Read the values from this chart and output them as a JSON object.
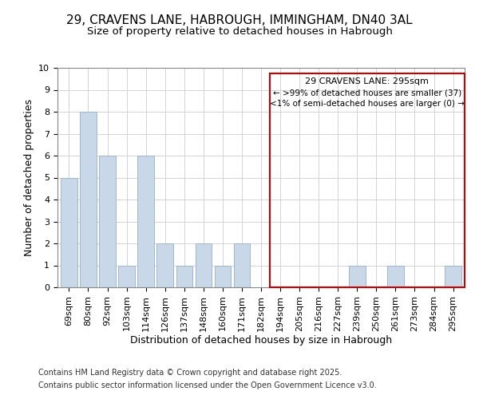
{
  "title": "29, CRAVENS LANE, HABROUGH, IMMINGHAM, DN40 3AL",
  "subtitle": "Size of property relative to detached houses in Habrough",
  "xlabel": "Distribution of detached houses by size in Habrough",
  "ylabel": "Number of detached properties",
  "categories": [
    "69sqm",
    "80sqm",
    "92sqm",
    "103sqm",
    "114sqm",
    "126sqm",
    "137sqm",
    "148sqm",
    "160sqm",
    "171sqm",
    "182sqm",
    "194sqm",
    "205sqm",
    "216sqm",
    "227sqm",
    "239sqm",
    "250sqm",
    "261sqm",
    "273sqm",
    "284sqm",
    "295sqm"
  ],
  "values": [
    5,
    8,
    6,
    1,
    6,
    2,
    1,
    2,
    1,
    2,
    0,
    0,
    0,
    0,
    0,
    1,
    0,
    1,
    0,
    0,
    1
  ],
  "bar_color": "#c8d8e8",
  "bar_edge_color": "#a0b8cc",
  "box_outline_color": "#cc0000",
  "annotation_title": "29 CRAVENS LANE: 295sqm",
  "annotation_line1": "← >99% of detached houses are smaller (37)",
  "annotation_line2": "<1% of semi-detached houses are larger (0) →",
  "ylim": [
    0,
    10
  ],
  "yticks": [
    0,
    1,
    2,
    3,
    4,
    5,
    6,
    7,
    8,
    9,
    10
  ],
  "footnote1": "Contains HM Land Registry data © Crown copyright and database right 2025.",
  "footnote2": "Contains public sector information licensed under the Open Government Licence v3.0.",
  "background_color": "#ffffff",
  "grid_color": "#cccccc",
  "title_fontsize": 11,
  "subtitle_fontsize": 9.5,
  "axis_label_fontsize": 9,
  "tick_fontsize": 8,
  "annotation_title_fontsize": 8,
  "annotation_text_fontsize": 7.5,
  "footnote_fontsize": 7
}
